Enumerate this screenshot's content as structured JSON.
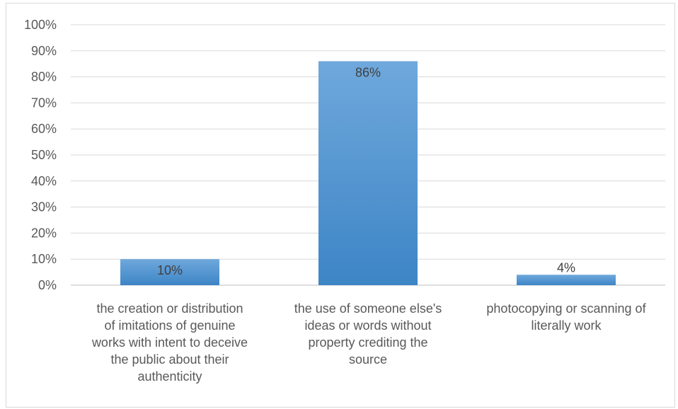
{
  "chart_data": {
    "type": "bar",
    "categories": [
      "the creation or distribution of imitations of genuine works with intent to deceive the public about their authenticity",
      "the use of someone else's ideas or words without property crediting the source",
      "photocopying or scanning of literally work"
    ],
    "category_lines": [
      [
        "the creation or distribution",
        "of imitations of genuine",
        "works with intent to deceive",
        "the public about their",
        "authenticity"
      ],
      [
        "the use of someone else's",
        "ideas or words without",
        "property crediting the",
        "source"
      ],
      [
        "photocopying or scanning of",
        "literally work"
      ]
    ],
    "values": [
      10,
      86,
      4
    ],
    "data_labels": [
      "10%",
      "86%",
      "4%"
    ],
    "y_ticks": [
      "0%",
      "10%",
      "20%",
      "30%",
      "40%",
      "50%",
      "60%",
      "70%",
      "80%",
      "90%",
      "100%"
    ],
    "ylim": [
      0,
      100
    ],
    "title": "",
    "xlabel": "",
    "ylabel": "",
    "grid": true,
    "colors": {
      "bar_top": "#6fa8dc",
      "bar_bottom": "#3d85c6",
      "grid": "#d9d9d9",
      "axis": "#bfbfbf"
    }
  }
}
